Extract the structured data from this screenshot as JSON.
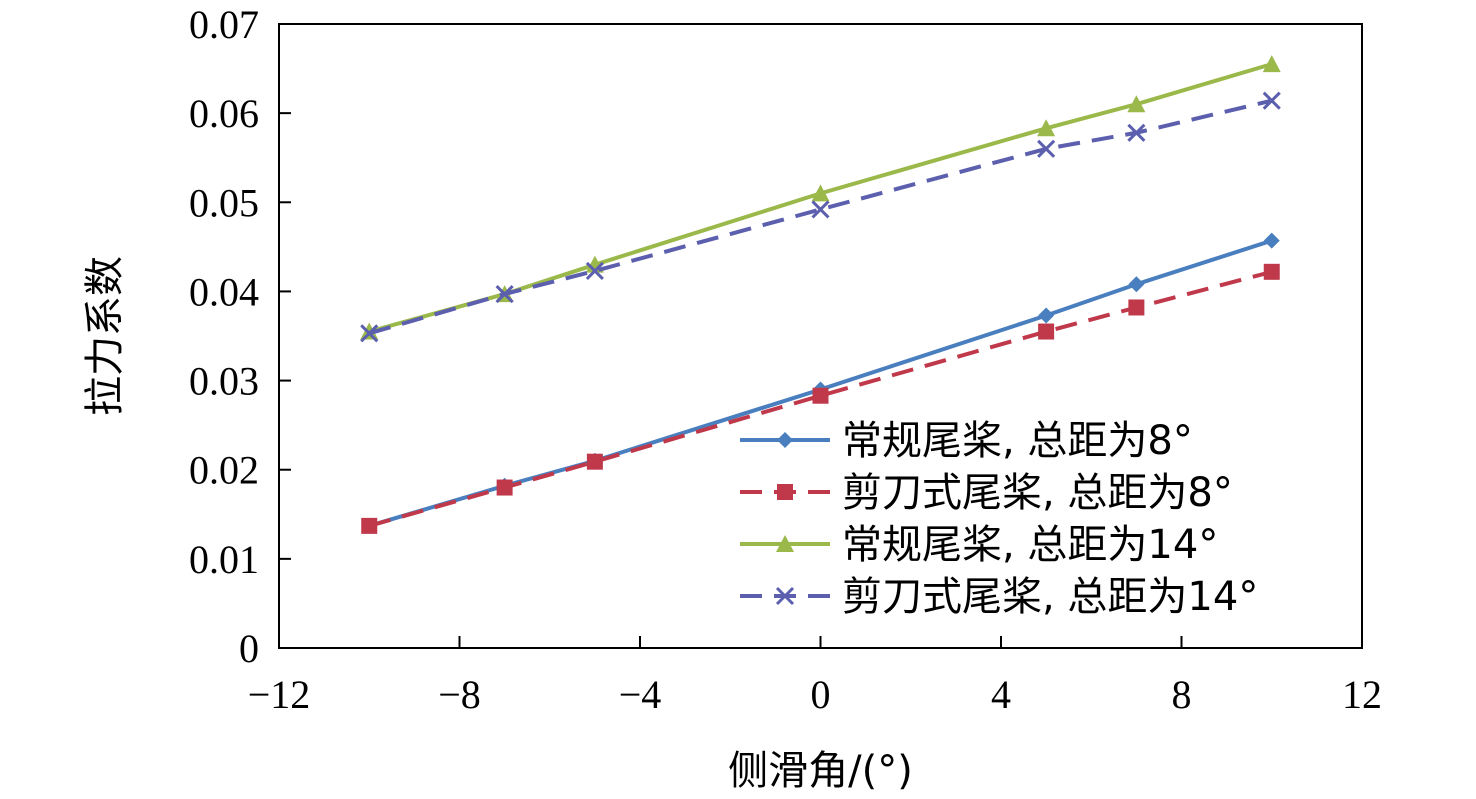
{
  "chart_data": {
    "type": "line",
    "title": "",
    "xlabel": "侧滑角/(°)",
    "ylabel": "拉力系数",
    "xlim": [
      -12,
      12
    ],
    "ylim": [
      0,
      0.07
    ],
    "xticks": [
      -12,
      -8,
      -4,
      0,
      4,
      8,
      12
    ],
    "yticks": [
      0,
      0.01,
      0.02,
      0.03,
      0.04,
      0.05,
      0.06,
      0.07
    ],
    "xtick_labels": [
      "−12",
      "−8",
      "−4",
      "0",
      "4",
      "8",
      "12"
    ],
    "ytick_labels": [
      "0",
      "0.01",
      "0.02",
      "0.03",
      "0.04",
      "0.05",
      "0.06",
      "0.07"
    ],
    "grid": false,
    "legend_position": "bottom-right",
    "x": [
      -10,
      -7,
      -5,
      0,
      5,
      7,
      10
    ],
    "series": [
      {
        "name": "常规尾桨, 总距为8°",
        "values": [
          0.0137,
          0.0182,
          0.021,
          0.029,
          0.0373,
          0.0408,
          0.0457
        ],
        "color": "#4a7fbf",
        "line_style": "solid",
        "marker": "diamond"
      },
      {
        "name": "剪刀式尾桨, 总距为8°",
        "values": [
          0.0137,
          0.018,
          0.0209,
          0.0283,
          0.0355,
          0.0382,
          0.0422
        ],
        "color": "#c0394b",
        "line_style": "dashed",
        "marker": "square"
      },
      {
        "name": "常规尾桨, 总距为14°",
        "values": [
          0.0355,
          0.0397,
          0.043,
          0.051,
          0.0583,
          0.061,
          0.0655
        ],
        "color": "#9bb94a",
        "line_style": "solid",
        "marker": "triangle"
      },
      {
        "name": "剪刀式尾桨, 总距为14°",
        "values": [
          0.0353,
          0.0397,
          0.0423,
          0.0492,
          0.056,
          0.0578,
          0.0614
        ],
        "color": "#5b5fae",
        "line_style": "dashed",
        "marker": "x"
      }
    ]
  }
}
